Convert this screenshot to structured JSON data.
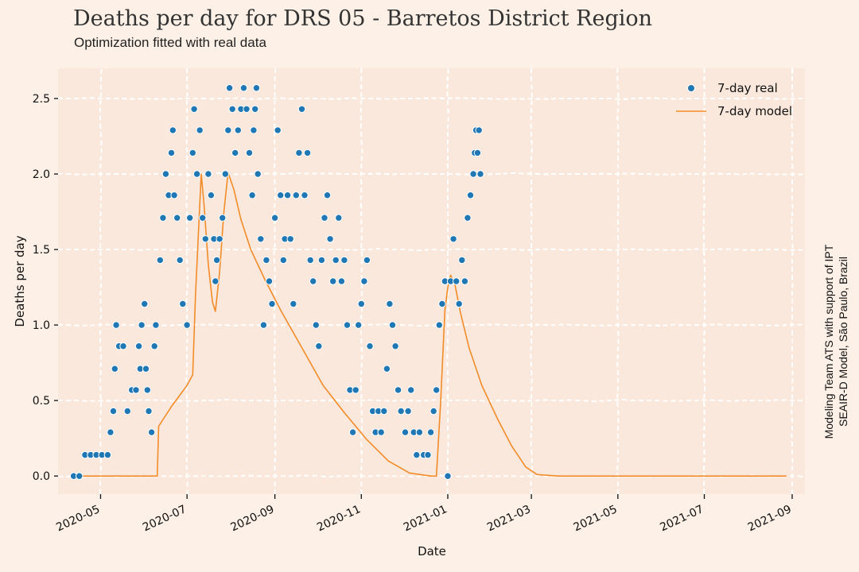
{
  "header": {
    "title": "Deaths per day for DRS 05 - Barretos District Region",
    "subtitle": "Optimization fitted with real data"
  },
  "side_note": {
    "line1": "Modeling Team ATS with support of IPT",
    "line2": "SEAIR-D Model, São Paulo, Brazil"
  },
  "colors": {
    "background": "#fdf0e6",
    "plot_background": "#fae8dc",
    "grid": "#ffffff",
    "real": "#1f77b4",
    "model": "#f28c28"
  },
  "chart_data": {
    "type": "scatter",
    "xlabel": "Date",
    "ylabel": "Deaths per day",
    "xlim": [
      "2020-04-01",
      "2021-09-10"
    ],
    "ylim": [
      -0.12,
      2.7
    ],
    "grid": true,
    "legend_position": "top-right",
    "x_ticks": [
      "2020-05",
      "2020-07",
      "2020-09",
      "2020-11",
      "2021-01",
      "2021-03",
      "2021-05",
      "2021-07",
      "2021-09"
    ],
    "y_ticks": [
      "0.0",
      "0.5",
      "1.0",
      "1.5",
      "2.0",
      "2.5"
    ],
    "series": [
      {
        "name": "7-day real",
        "kind": "scatter",
        "points": [
          [
            "2020-04-12",
            0.0
          ],
          [
            "2020-04-16",
            0.0
          ],
          [
            "2020-04-20",
            0.14
          ],
          [
            "2020-04-24",
            0.14
          ],
          [
            "2020-04-28",
            0.14
          ],
          [
            "2020-05-02",
            0.14
          ],
          [
            "2020-05-06",
            0.14
          ],
          [
            "2020-05-08",
            0.29
          ],
          [
            "2020-05-10",
            0.43
          ],
          [
            "2020-05-11",
            0.71
          ],
          [
            "2020-05-12",
            1.0
          ],
          [
            "2020-05-14",
            0.86
          ],
          [
            "2020-05-17",
            0.86
          ],
          [
            "2020-05-20",
            0.43
          ],
          [
            "2020-05-23",
            0.57
          ],
          [
            "2020-05-26",
            0.57
          ],
          [
            "2020-05-28",
            0.86
          ],
          [
            "2020-05-29",
            0.71
          ],
          [
            "2020-05-30",
            1.0
          ],
          [
            "2020-06-01",
            1.14
          ],
          [
            "2020-06-02",
            0.71
          ],
          [
            "2020-06-03",
            0.57
          ],
          [
            "2020-06-04",
            0.43
          ],
          [
            "2020-06-06",
            0.29
          ],
          [
            "2020-06-08",
            0.86
          ],
          [
            "2020-06-09",
            1.0
          ],
          [
            "2020-06-12",
            1.43
          ],
          [
            "2020-06-14",
            1.71
          ],
          [
            "2020-06-16",
            2.0
          ],
          [
            "2020-06-18",
            1.86
          ],
          [
            "2020-06-20",
            2.14
          ],
          [
            "2020-06-21",
            2.29
          ],
          [
            "2020-06-22",
            1.86
          ],
          [
            "2020-06-24",
            1.71
          ],
          [
            "2020-06-26",
            1.43
          ],
          [
            "2020-06-28",
            1.14
          ],
          [
            "2020-07-01",
            1.0
          ],
          [
            "2020-07-03",
            1.71
          ],
          [
            "2020-07-05",
            2.14
          ],
          [
            "2020-07-06",
            2.43
          ],
          [
            "2020-07-08",
            2.0
          ],
          [
            "2020-07-10",
            2.29
          ],
          [
            "2020-07-12",
            1.71
          ],
          [
            "2020-07-14",
            1.57
          ],
          [
            "2020-07-16",
            2.0
          ],
          [
            "2020-07-18",
            1.86
          ],
          [
            "2020-07-20",
            1.57
          ],
          [
            "2020-07-21",
            1.29
          ],
          [
            "2020-07-22",
            1.43
          ],
          [
            "2020-07-24",
            1.57
          ],
          [
            "2020-07-26",
            1.71
          ],
          [
            "2020-07-28",
            2.0
          ],
          [
            "2020-07-30",
            2.29
          ],
          [
            "2020-07-31",
            2.57
          ],
          [
            "2020-08-02",
            2.43
          ],
          [
            "2020-08-04",
            2.14
          ],
          [
            "2020-08-06",
            2.29
          ],
          [
            "2020-08-08",
            2.43
          ],
          [
            "2020-08-10",
            2.57
          ],
          [
            "2020-08-12",
            2.43
          ],
          [
            "2020-08-14",
            2.14
          ],
          [
            "2020-08-16",
            1.86
          ],
          [
            "2020-08-17",
            2.29
          ],
          [
            "2020-08-18",
            2.43
          ],
          [
            "2020-08-19",
            2.57
          ],
          [
            "2020-08-20",
            2.0
          ],
          [
            "2020-08-22",
            1.57
          ],
          [
            "2020-08-24",
            1.0
          ],
          [
            "2020-08-26",
            1.43
          ],
          [
            "2020-08-28",
            1.29
          ],
          [
            "2020-08-30",
            1.14
          ],
          [
            "2020-09-01",
            1.71
          ],
          [
            "2020-09-03",
            2.29
          ],
          [
            "2020-09-05",
            1.86
          ],
          [
            "2020-09-07",
            1.43
          ],
          [
            "2020-09-08",
            1.57
          ],
          [
            "2020-09-10",
            1.86
          ],
          [
            "2020-09-12",
            1.57
          ],
          [
            "2020-09-14",
            1.14
          ],
          [
            "2020-09-16",
            1.86
          ],
          [
            "2020-09-18",
            2.14
          ],
          [
            "2020-09-20",
            2.43
          ],
          [
            "2020-09-22",
            1.86
          ],
          [
            "2020-09-24",
            2.14
          ],
          [
            "2020-09-26",
            1.43
          ],
          [
            "2020-09-28",
            1.29
          ],
          [
            "2020-09-30",
            1.0
          ],
          [
            "2020-10-02",
            0.86
          ],
          [
            "2020-10-04",
            1.43
          ],
          [
            "2020-10-06",
            1.71
          ],
          [
            "2020-10-08",
            1.86
          ],
          [
            "2020-10-10",
            1.57
          ],
          [
            "2020-10-12",
            1.29
          ],
          [
            "2020-10-14",
            1.43
          ],
          [
            "2020-10-16",
            1.71
          ],
          [
            "2020-10-18",
            1.29
          ],
          [
            "2020-10-20",
            1.43
          ],
          [
            "2020-10-22",
            1.0
          ],
          [
            "2020-10-24",
            0.57
          ],
          [
            "2020-10-26",
            0.29
          ],
          [
            "2020-10-28",
            0.57
          ],
          [
            "2020-10-30",
            1.0
          ],
          [
            "2020-11-01",
            1.14
          ],
          [
            "2020-11-03",
            1.29
          ],
          [
            "2020-11-05",
            1.43
          ],
          [
            "2020-11-07",
            0.86
          ],
          [
            "2020-11-09",
            0.43
          ],
          [
            "2020-11-11",
            0.29
          ],
          [
            "2020-11-13",
            0.43
          ],
          [
            "2020-11-15",
            0.29
          ],
          [
            "2020-11-17",
            0.43
          ],
          [
            "2020-11-19",
            0.71
          ],
          [
            "2020-11-21",
            1.14
          ],
          [
            "2020-11-23",
            1.0
          ],
          [
            "2020-11-25",
            0.86
          ],
          [
            "2020-11-27",
            0.57
          ],
          [
            "2020-11-29",
            0.43
          ],
          [
            "2020-12-02",
            0.29
          ],
          [
            "2020-12-04",
            0.43
          ],
          [
            "2020-12-06",
            0.57
          ],
          [
            "2020-12-08",
            0.29
          ],
          [
            "2020-12-10",
            0.14
          ],
          [
            "2020-12-12",
            0.29
          ],
          [
            "2020-12-15",
            0.14
          ],
          [
            "2020-12-18",
            0.14
          ],
          [
            "2020-12-20",
            0.29
          ],
          [
            "2020-12-22",
            0.43
          ],
          [
            "2020-12-24",
            0.57
          ],
          [
            "2020-12-26",
            1.0
          ],
          [
            "2020-12-28",
            1.14
          ],
          [
            "2020-12-30",
            1.29
          ],
          [
            "2021-01-01",
            0.0
          ],
          [
            "2021-01-03",
            1.29
          ],
          [
            "2021-01-05",
            1.57
          ],
          [
            "2021-01-07",
            1.29
          ],
          [
            "2021-01-09",
            1.14
          ],
          [
            "2021-01-11",
            1.43
          ],
          [
            "2021-01-13",
            1.29
          ],
          [
            "2021-01-15",
            1.71
          ],
          [
            "2021-01-17",
            1.86
          ],
          [
            "2021-01-19",
            2.0
          ],
          [
            "2021-01-20",
            2.14
          ],
          [
            "2021-01-21",
            2.29
          ],
          [
            "2021-01-22",
            2.14
          ],
          [
            "2021-01-23",
            2.29
          ],
          [
            "2021-01-24",
            2.0
          ]
        ]
      },
      {
        "name": "7-day model",
        "kind": "line",
        "points": [
          [
            "2020-04-13",
            0.0
          ],
          [
            "2020-05-01",
            0.0
          ],
          [
            "2020-05-20",
            0.0
          ],
          [
            "2020-06-05",
            0.0
          ],
          [
            "2020-06-10",
            0.0
          ],
          [
            "2020-06-11",
            0.33
          ],
          [
            "2020-06-20",
            0.46
          ],
          [
            "2020-07-01",
            0.6
          ],
          [
            "2020-07-05",
            0.67
          ],
          [
            "2020-07-07",
            1.2
          ],
          [
            "2020-07-09",
            1.6
          ],
          [
            "2020-07-11",
            2.0
          ],
          [
            "2020-07-13",
            1.8
          ],
          [
            "2020-07-16",
            1.4
          ],
          [
            "2020-07-19",
            1.15
          ],
          [
            "2020-07-21",
            1.09
          ],
          [
            "2020-07-24",
            1.35
          ],
          [
            "2020-07-27",
            1.75
          ],
          [
            "2020-07-30",
            2.01
          ],
          [
            "2020-08-03",
            1.9
          ],
          [
            "2020-08-08",
            1.7
          ],
          [
            "2020-08-15",
            1.5
          ],
          [
            "2020-08-25",
            1.3
          ],
          [
            "2020-09-05",
            1.1
          ],
          [
            "2020-09-20",
            0.85
          ],
          [
            "2020-10-05",
            0.6
          ],
          [
            "2020-10-20",
            0.42
          ],
          [
            "2020-11-05",
            0.24
          ],
          [
            "2020-11-20",
            0.1
          ],
          [
            "2020-12-05",
            0.02
          ],
          [
            "2020-12-20",
            0.0
          ],
          [
            "2020-12-24",
            0.0
          ],
          [
            "2020-12-27",
            0.5
          ],
          [
            "2020-12-30",
            1.1
          ],
          [
            "2021-01-01",
            1.25
          ],
          [
            "2021-01-03",
            1.33
          ],
          [
            "2021-01-06",
            1.27
          ],
          [
            "2021-01-10",
            1.08
          ],
          [
            "2021-01-16",
            0.85
          ],
          [
            "2021-01-25",
            0.6
          ],
          [
            "2021-02-05",
            0.38
          ],
          [
            "2021-02-15",
            0.2
          ],
          [
            "2021-02-25",
            0.06
          ],
          [
            "2021-03-05",
            0.01
          ],
          [
            "2021-03-20",
            0.0
          ],
          [
            "2021-05-01",
            0.0
          ],
          [
            "2021-07-01",
            0.0
          ],
          [
            "2021-08-28",
            0.0
          ]
        ]
      }
    ]
  }
}
